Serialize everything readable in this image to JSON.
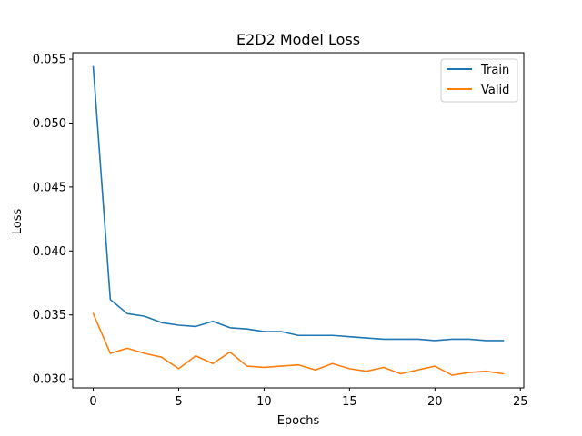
{
  "chart_data": {
    "type": "line",
    "title": "E2D2 Model Loss",
    "xlabel": "Epochs",
    "ylabel": "Loss",
    "xlim": [
      -1.2,
      25.2
    ],
    "ylim": [
      0.0293,
      0.0555
    ],
    "xticks": [
      0,
      5,
      10,
      15,
      20,
      25
    ],
    "yticks": [
      0.03,
      0.035,
      0.04,
      0.045,
      0.05,
      0.055
    ],
    "ytick_labels": [
      "0.030",
      "0.035",
      "0.040",
      "0.045",
      "0.050",
      "0.055"
    ],
    "grid": false,
    "legend_position": "top-right",
    "x": [
      0,
      1,
      2,
      3,
      4,
      5,
      6,
      7,
      8,
      9,
      10,
      11,
      12,
      13,
      14,
      15,
      16,
      17,
      18,
      19,
      20,
      21,
      22,
      23,
      24
    ],
    "series": [
      {
        "name": "Train",
        "color": "#1f77b4",
        "values": [
          0.0544,
          0.0362,
          0.0351,
          0.0349,
          0.0344,
          0.0342,
          0.0341,
          0.0345,
          0.034,
          0.0339,
          0.0337,
          0.0337,
          0.0334,
          0.0334,
          0.0334,
          0.0333,
          0.0332,
          0.0331,
          0.0331,
          0.0331,
          0.033,
          0.0331,
          0.0331,
          0.033,
          0.033
        ]
      },
      {
        "name": "Valid",
        "color": "#ff7f0e",
        "values": [
          0.0351,
          0.032,
          0.0324,
          0.032,
          0.0317,
          0.0308,
          0.0318,
          0.0312,
          0.0321,
          0.031,
          0.0309,
          0.031,
          0.0311,
          0.0307,
          0.0312,
          0.0308,
          0.0306,
          0.0309,
          0.0304,
          0.0307,
          0.031,
          0.0303,
          0.0305,
          0.0306,
          0.0304
        ]
      }
    ]
  }
}
